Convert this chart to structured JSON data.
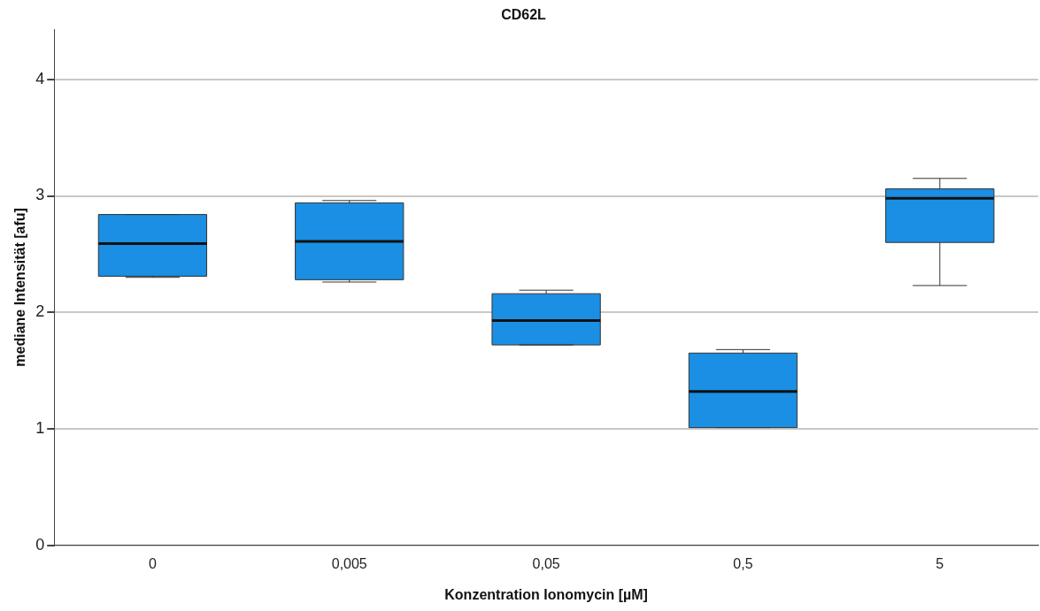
{
  "chart_data": {
    "type": "box",
    "title": "CD62L",
    "xlabel": "Konzentration Ionomycin [µM]",
    "ylabel": "mediane Intensität [afu]",
    "categories": [
      "0",
      "0,005",
      "0,05",
      "0,5",
      "5"
    ],
    "color": "#1a8fe3",
    "boxes": [
      {
        "low": 2.3,
        "q1": 2.31,
        "median": 2.59,
        "q3": 2.84,
        "high": 2.84
      },
      {
        "low": 2.26,
        "q1": 2.28,
        "median": 2.61,
        "q3": 2.94,
        "high": 2.96
      },
      {
        "low": 1.72,
        "q1": 1.72,
        "median": 1.93,
        "q3": 2.16,
        "high": 2.19
      },
      {
        "low": 1.01,
        "q1": 1.01,
        "median": 1.32,
        "q3": 1.65,
        "high": 1.68
      },
      {
        "low": 2.23,
        "q1": 2.6,
        "median": 2.98,
        "q3": 3.06,
        "high": 3.15
      }
    ],
    "ylim": [
      0,
      4.43
    ],
    "yticks": [
      0,
      1,
      2,
      3,
      4
    ],
    "grid": "y"
  }
}
